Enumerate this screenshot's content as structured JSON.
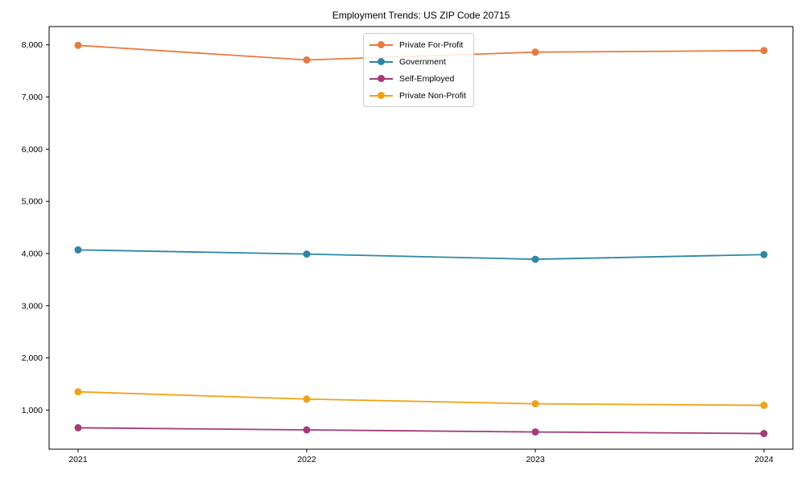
{
  "chart_data": {
    "type": "line",
    "title": "Employment Trends: US ZIP Code 20715",
    "categories": [
      "2021",
      "2022",
      "2023",
      "2024"
    ],
    "series": [
      {
        "name": "Private For-Profit",
        "color": "#E8793E",
        "values": [
          7990,
          7710,
          7860,
          7890
        ]
      },
      {
        "name": "Government",
        "color": "#2E86A6",
        "values": [
          4070,
          3990,
          3890,
          3980
        ]
      },
      {
        "name": "Self-Employed",
        "color": "#A63A78",
        "values": [
          660,
          620,
          580,
          550
        ]
      },
      {
        "name": "Private Non-Profit",
        "color": "#F0A213",
        "values": [
          1350,
          1210,
          1120,
          1090
        ]
      }
    ],
    "xlabel": "",
    "ylabel": "",
    "xtick_labels": [
      "2021",
      "2022",
      "2023",
      "2024"
    ],
    "yticks": [
      1000,
      2000,
      3000,
      4000,
      5000,
      6000,
      7000,
      8000
    ],
    "ytick_labels": [
      "1,000",
      "2,000",
      "3,000",
      "4,000",
      "5,000",
      "6,000",
      "7,000",
      "8,000"
    ],
    "ylim": [
      250,
      8350
    ],
    "grid": false,
    "legend_position": "upper-center",
    "marker": "circle",
    "axis_color": "#000000",
    "background_color": "#ffffff"
  }
}
